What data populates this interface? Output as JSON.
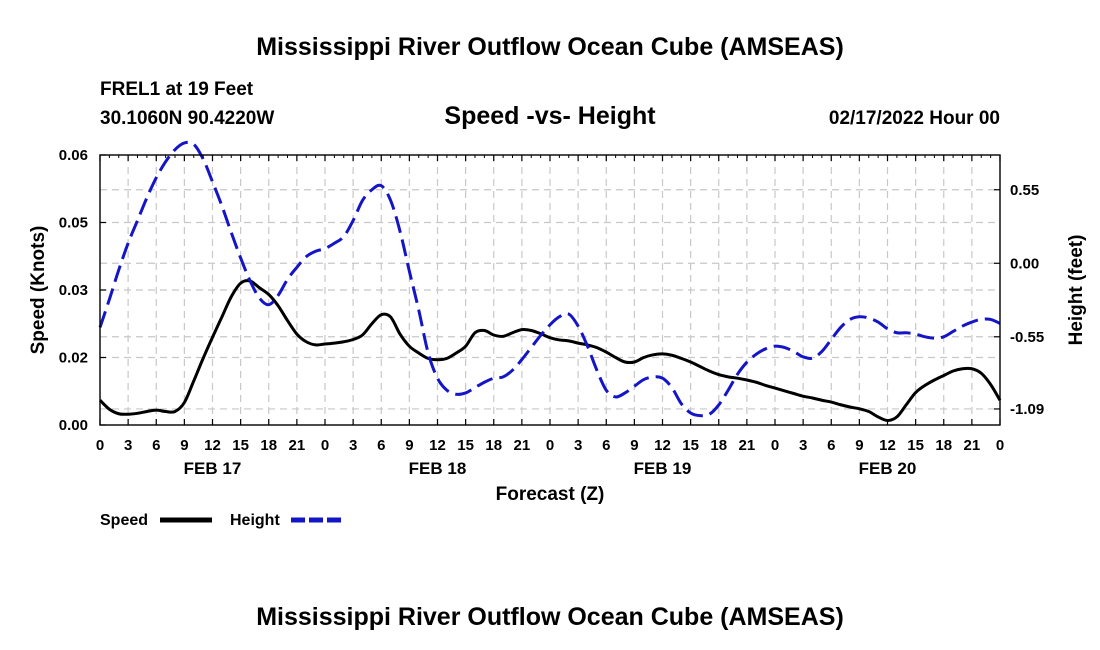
{
  "chart_data": {
    "type": "line",
    "title": "Mississippi River Outflow Ocean Cube (AMSEAS)",
    "footer_title": "Mississippi River Outflow Ocean Cube (AMSEAS)",
    "station": "FREL1 at 19 Feet",
    "location": "30.1060N  90.4220W",
    "subtitle": "Speed -vs- Height",
    "date": "02/17/2022 Hour 00",
    "xlabel": "Forecast (Z)",
    "ylabel": "Speed (Knots)",
    "ylabel_right": "Height (feet)",
    "xlim": [
      0,
      96
    ],
    "ylim": [
      0,
      0.06
    ],
    "ylim_right": [
      -1.21,
      0.81
    ],
    "x_ticks": [
      0,
      3,
      6,
      9,
      12,
      15,
      18,
      21,
      24,
      27,
      30,
      33,
      36,
      39,
      42,
      45,
      48,
      51,
      54,
      57,
      60,
      63,
      66,
      69,
      72,
      75,
      78,
      81,
      84,
      87,
      90,
      93,
      96
    ],
    "x_tick_labels": [
      "0",
      "3",
      "6",
      "9",
      "12",
      "15",
      "18",
      "21",
      "0",
      "3",
      "6",
      "9",
      "12",
      "15",
      "18",
      "21",
      "0",
      "3",
      "6",
      "9",
      "12",
      "15",
      "18",
      "21",
      "0",
      "3",
      "6",
      "9",
      "12",
      "15",
      "18",
      "21",
      "0"
    ],
    "date_labels": [
      {
        "x": 12,
        "label": "FEB 17"
      },
      {
        "x": 36,
        "label": "FEB 18"
      },
      {
        "x": 60,
        "label": "FEB 19"
      },
      {
        "x": 84,
        "label": "FEB 20"
      }
    ],
    "y_ticks_left": [
      {
        "value": 0.0,
        "label": "0.00"
      },
      {
        "value": 0.015,
        "label": "0.02"
      },
      {
        "value": 0.03,
        "label": "0.03"
      },
      {
        "value": 0.045,
        "label": "0.05"
      },
      {
        "value": 0.06,
        "label": "0.06"
      }
    ],
    "y_ticks_right": [
      {
        "value": 0.55,
        "label": "0.55"
      },
      {
        "value": 0.0,
        "label": "0.00"
      },
      {
        "value": -0.55,
        "label": "-0.55"
      },
      {
        "value": -1.09,
        "label": "-1.09"
      }
    ],
    "series": [
      {
        "name": "Speed",
        "axis": "left",
        "color": "#000000",
        "dash": "solid",
        "x": [
          0,
          1,
          2,
          3,
          4,
          5,
          6,
          7,
          8,
          9,
          10,
          11,
          12,
          13,
          14,
          15,
          16,
          17,
          18,
          19,
          20,
          21,
          22,
          23,
          24,
          25,
          26,
          27,
          28,
          29,
          30,
          31,
          32,
          33,
          34,
          35,
          36,
          37,
          38,
          39,
          40,
          41,
          42,
          43,
          44,
          45,
          46,
          47,
          48,
          49,
          50,
          51,
          52,
          53,
          54,
          55,
          56,
          57,
          58,
          59,
          60,
          61,
          62,
          63,
          64,
          65,
          66,
          67,
          68,
          69,
          70,
          71,
          72,
          73,
          74,
          75,
          76,
          77,
          78,
          79,
          80,
          81,
          82,
          83,
          84,
          85,
          86,
          87,
          88,
          89,
          90,
          91,
          92,
          93,
          94,
          95,
          96
        ],
        "y": [
          0.0055,
          0.0035,
          0.0025,
          0.0024,
          0.0026,
          0.003,
          0.0033,
          0.003,
          0.003,
          0.005,
          0.0098,
          0.0148,
          0.0195,
          0.024,
          0.0285,
          0.0315,
          0.032,
          0.0305,
          0.029,
          0.0265,
          0.0232,
          0.0202,
          0.0185,
          0.0178,
          0.018,
          0.0182,
          0.0185,
          0.019,
          0.02,
          0.0225,
          0.0245,
          0.024,
          0.0202,
          0.0175,
          0.016,
          0.0148,
          0.0145,
          0.0148,
          0.016,
          0.0175,
          0.0205,
          0.021,
          0.02,
          0.0197,
          0.0205,
          0.0212,
          0.021,
          0.0203,
          0.0194,
          0.0189,
          0.0187,
          0.0182,
          0.0178,
          0.0172,
          0.0162,
          0.015,
          0.014,
          0.014,
          0.015,
          0.0156,
          0.0158,
          0.0155,
          0.0148,
          0.014,
          0.013,
          0.012,
          0.0112,
          0.0107,
          0.0104,
          0.01,
          0.0095,
          0.0088,
          0.0082,
          0.0076,
          0.007,
          0.0064,
          0.006,
          0.0055,
          0.0051,
          0.0045,
          0.004,
          0.0036,
          0.003,
          0.0018,
          0.001,
          0.0018,
          0.0045,
          0.0072,
          0.0088,
          0.01,
          0.011,
          0.012,
          0.0125,
          0.0125,
          0.0115,
          0.009,
          0.0055
        ]
      },
      {
        "name": "Height",
        "axis": "right",
        "color": "#1515c8",
        "dash": "dashed",
        "x": [
          0,
          1,
          2,
          3,
          4,
          5,
          6,
          7,
          8,
          9,
          10,
          11,
          12,
          13,
          14,
          15,
          16,
          17,
          18,
          19,
          20,
          21,
          22,
          23,
          24,
          25,
          26,
          27,
          28,
          29,
          30,
          31,
          32,
          33,
          34,
          35,
          36,
          37,
          38,
          39,
          40,
          41,
          42,
          43,
          44,
          45,
          46,
          47,
          48,
          49,
          50,
          51,
          52,
          53,
          54,
          55,
          56,
          57,
          58,
          59,
          60,
          61,
          62,
          63,
          64,
          65,
          66,
          67,
          68,
          69,
          70,
          71,
          72,
          73,
          74,
          75,
          76,
          77,
          78,
          79,
          80,
          81,
          82,
          83,
          84,
          85,
          86,
          87,
          88,
          89,
          90,
          91,
          92,
          93,
          94,
          95,
          96
        ],
        "y": [
          -0.48,
          -0.27,
          -0.05,
          0.15,
          0.32,
          0.49,
          0.64,
          0.76,
          0.85,
          0.9,
          0.89,
          0.78,
          0.61,
          0.43,
          0.23,
          0.04,
          -0.13,
          -0.26,
          -0.31,
          -0.24,
          -0.12,
          -0.03,
          0.05,
          0.09,
          0.11,
          0.15,
          0.2,
          0.32,
          0.47,
          0.55,
          0.58,
          0.47,
          0.24,
          -0.06,
          -0.35,
          -0.67,
          -0.86,
          -0.95,
          -0.98,
          -0.97,
          -0.93,
          -0.89,
          -0.86,
          -0.85,
          -0.8,
          -0.72,
          -0.63,
          -0.54,
          -0.46,
          -0.4,
          -0.38,
          -0.47,
          -0.62,
          -0.8,
          -0.95,
          -1.0,
          -0.97,
          -0.92,
          -0.87,
          -0.85,
          -0.86,
          -0.93,
          -1.05,
          -1.12,
          -1.14,
          -1.13,
          -1.06,
          -0.95,
          -0.83,
          -0.74,
          -0.68,
          -0.64,
          -0.62,
          -0.63,
          -0.66,
          -0.7,
          -0.71,
          -0.66,
          -0.57,
          -0.48,
          -0.42,
          -0.4,
          -0.41,
          -0.44,
          -0.49,
          -0.52,
          -0.52,
          -0.53,
          -0.55,
          -0.56,
          -0.55,
          -0.51,
          -0.47,
          -0.44,
          -0.42,
          -0.42,
          -0.45
        ]
      }
    ],
    "legend": {
      "placement": "bottom-left",
      "entries": [
        "Speed",
        "Height"
      ]
    }
  }
}
